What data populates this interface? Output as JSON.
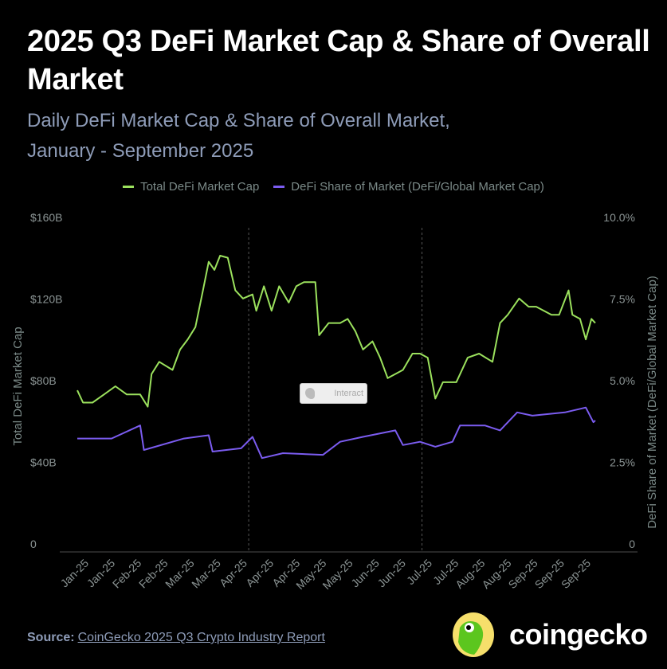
{
  "title": "2025 Q3 DeFi Market Cap & Share of Overall Market",
  "subtitle_line1": "Daily DeFi Market Cap & Share of Overall Market,",
  "subtitle_line2": "January - September 2025",
  "interact_label": "Interact",
  "source": {
    "label": "Source:",
    "link_text": "CoinGecko 2025 Q3 Crypto Industry Report"
  },
  "logo": {
    "text": "coingecko"
  },
  "chart_data": {
    "type": "line",
    "title": "2025 Q3 DeFi Market Cap & Share of Overall Market",
    "legend_position": "top",
    "grid": false,
    "xlabel": "",
    "ylabel": "Total DeFi Market Cap",
    "y2label": "DeFi Share of Market (DeFi/Global Market Cap)",
    "ylim": [
      0,
      160
    ],
    "y2lim": [
      0,
      10
    ],
    "y_ticks": [
      "0",
      "$40B",
      "$80B",
      "$120B",
      "$160B"
    ],
    "y2_ticks": [
      "0",
      "2.5%",
      "5.0%",
      "7.5%",
      "10.0%"
    ],
    "x_ticks": [
      "Jan-25",
      "Jan-25",
      "Feb-25",
      "Feb-25",
      "Mar-25",
      "Mar-25",
      "Apr-25",
      "Apr-25",
      "Apr-25",
      "May-25",
      "May-25",
      "Jun-25",
      "Jun-25",
      "Jul-25",
      "Jul-25",
      "Aug-25",
      "Aug-25",
      "Sep-25",
      "Sep-25",
      "Sep-25"
    ],
    "reference_lines": [
      "2025-04-01",
      "2025-07-01"
    ],
    "series": [
      {
        "name": "Total DeFi Market Cap",
        "axis": "left",
        "unit": "$B",
        "color": "#9be15d",
        "x": [
          "2025-01-01",
          "2025-01-04",
          "2025-01-09",
          "2025-01-15",
          "2025-01-21",
          "2025-01-27",
          "2025-02-03",
          "2025-02-07",
          "2025-02-09",
          "2025-02-13",
          "2025-02-20",
          "2025-02-24",
          "2025-02-28",
          "2025-03-04",
          "2025-03-08",
          "2025-03-11",
          "2025-03-14",
          "2025-03-17",
          "2025-03-21",
          "2025-03-25",
          "2025-03-29",
          "2025-04-03",
          "2025-04-05",
          "2025-04-09",
          "2025-04-13",
          "2025-04-17",
          "2025-04-22",
          "2025-04-26",
          "2025-04-30",
          "2025-05-06",
          "2025-05-08",
          "2025-05-13",
          "2025-05-19",
          "2025-05-23",
          "2025-05-27",
          "2025-05-31",
          "2025-06-05",
          "2025-06-09",
          "2025-06-13",
          "2025-06-17",
          "2025-06-21",
          "2025-06-26",
          "2025-06-30",
          "2025-07-04",
          "2025-07-08",
          "2025-07-12",
          "2025-07-19",
          "2025-07-25",
          "2025-07-31",
          "2025-08-07",
          "2025-08-11",
          "2025-08-15",
          "2025-08-21",
          "2025-08-26",
          "2025-08-30",
          "2025-09-07",
          "2025-09-11",
          "2025-09-16",
          "2025-09-18",
          "2025-09-22",
          "2025-09-25",
          "2025-09-28",
          "2025-09-30"
        ],
        "values": [
          78,
          72,
          72,
          76,
          80,
          76,
          76,
          70,
          86,
          92,
          88,
          98,
          103,
          109,
          127,
          141,
          137,
          144,
          143,
          127,
          123,
          125,
          117,
          129,
          117,
          129,
          121,
          129,
          131,
          131,
          105,
          111,
          111,
          113,
          107,
          98,
          102,
          94,
          84,
          86,
          88,
          96,
          96,
          94,
          74,
          82,
          82,
          94,
          96,
          92,
          111,
          115,
          123,
          119,
          119,
          115,
          115,
          127,
          115,
          113,
          103,
          113,
          111
        ]
      },
      {
        "name": "DeFi Share of Market (DeFi/Global Market Cap)",
        "axis": "right",
        "unit": "%",
        "color": "#7b5cf0",
        "x": [
          "2025-01-01",
          "2025-01-19",
          "2025-02-03",
          "2025-02-05",
          "2025-02-26",
          "2025-03-11",
          "2025-03-13",
          "2025-03-28",
          "2025-04-03",
          "2025-04-08",
          "2025-04-19",
          "2025-05-10",
          "2025-05-19",
          "2025-05-31",
          "2025-06-17",
          "2025-06-21",
          "2025-06-30",
          "2025-07-08",
          "2025-07-17",
          "2025-07-21",
          "2025-08-03",
          "2025-08-11",
          "2025-08-20",
          "2025-08-28",
          "2025-09-14",
          "2025-09-25",
          "2025-09-29",
          "2025-09-30"
        ],
        "values": [
          3.4,
          3.4,
          3.8,
          3.05,
          3.4,
          3.5,
          3.0,
          3.1,
          3.45,
          2.8,
          2.95,
          2.9,
          3.3,
          3.45,
          3.65,
          3.2,
          3.3,
          3.15,
          3.3,
          3.8,
          3.8,
          3.65,
          4.2,
          4.1,
          4.2,
          4.35,
          3.9,
          3.95
        ]
      }
    ]
  }
}
